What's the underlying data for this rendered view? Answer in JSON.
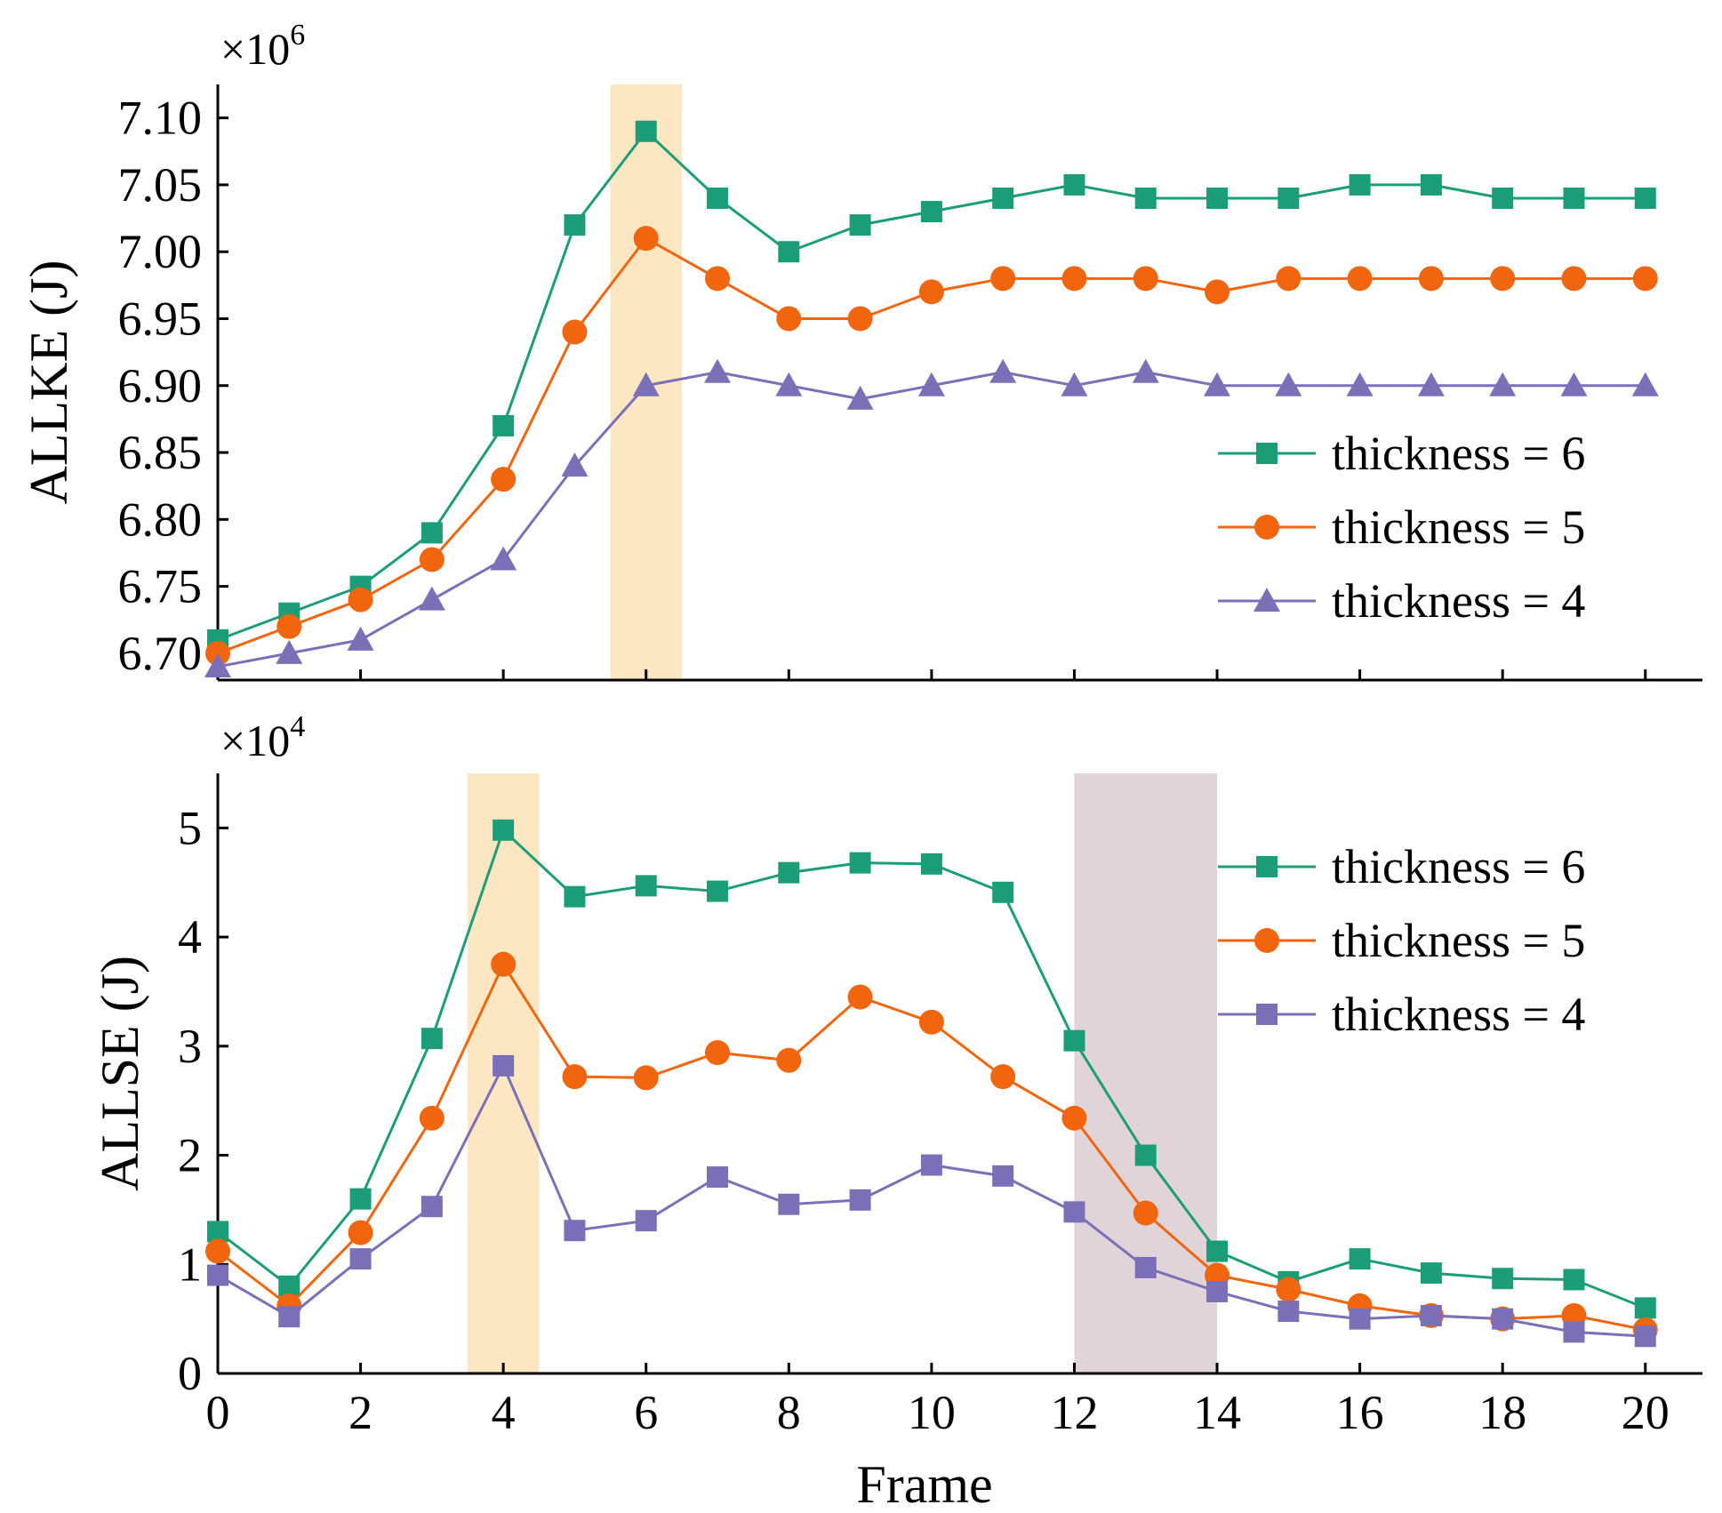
{
  "chart_data": [
    {
      "type": "line",
      "id": "top",
      "title": "",
      "xlabel": "",
      "ylabel": "ALLKE (J)",
      "multiplier": {
        "base": "×10",
        "exp": "6"
      },
      "x": [
        0,
        1,
        2,
        3,
        4,
        5,
        6,
        7,
        8,
        9,
        10,
        11,
        12,
        13,
        14,
        15,
        16,
        17,
        18,
        19,
        20
      ],
      "xlim": [
        0,
        20.8
      ],
      "ylim": [
        6.68,
        7.125
      ],
      "yticks": [
        6.7,
        6.75,
        6.8,
        6.85,
        6.9,
        6.95,
        7.0,
        7.05,
        7.1
      ],
      "ytick_labels": [
        "6.70",
        "6.75",
        "6.80",
        "6.85",
        "6.90",
        "6.95",
        "7.00",
        "7.05",
        "7.10"
      ],
      "xticks": [
        0,
        2,
        4,
        6,
        8,
        10,
        12,
        14,
        16,
        18,
        20
      ],
      "show_xtick_labels": false,
      "highlight_bands": [
        {
          "from": 5.5,
          "to": 6.5,
          "color": "#fde7c2"
        }
      ],
      "series": [
        {
          "name": "thickness = 6",
          "color": "#1b9e77",
          "marker": "square",
          "values": [
            6.71,
            6.73,
            6.75,
            6.79,
            6.87,
            7.02,
            7.09,
            7.04,
            7.0,
            7.02,
            7.03,
            7.04,
            7.05,
            7.04,
            7.04,
            7.04,
            7.05,
            7.05,
            7.04,
            7.04,
            7.04
          ]
        },
        {
          "name": "thickness = 5",
          "color": "#f0650e",
          "marker": "circle",
          "values": [
            6.7,
            6.72,
            6.74,
            6.77,
            6.83,
            6.94,
            7.01,
            6.98,
            6.95,
            6.95,
            6.97,
            6.98,
            6.98,
            6.98,
            6.97,
            6.98,
            6.98,
            6.98,
            6.98,
            6.98,
            6.98
          ]
        },
        {
          "name": "thickness = 4",
          "color": "#7b70b8",
          "marker": "triangle",
          "values": [
            6.69,
            6.7,
            6.71,
            6.74,
            6.77,
            6.84,
            6.9,
            6.91,
            6.9,
            6.89,
            6.9,
            6.91,
            6.9,
            6.91,
            6.9,
            6.9,
            6.9,
            6.9,
            6.9,
            6.9,
            6.9
          ]
        }
      ],
      "legend_position": "center-right"
    },
    {
      "type": "line",
      "id": "bottom",
      "title": "",
      "xlabel": "Frame",
      "ylabel": "ALLSE (J)",
      "multiplier": {
        "base": "×10",
        "exp": "4"
      },
      "x": [
        0,
        1,
        2,
        3,
        4,
        5,
        6,
        7,
        8,
        9,
        10,
        11,
        12,
        13,
        14,
        15,
        16,
        17,
        18,
        19,
        20
      ],
      "xlim": [
        0,
        20.8
      ],
      "ylim": [
        0,
        5.5
      ],
      "yticks": [
        0,
        1,
        2,
        3,
        4,
        5
      ],
      "ytick_labels": [
        "0",
        "1",
        "2",
        "3",
        "4",
        "5"
      ],
      "xticks": [
        0,
        2,
        4,
        6,
        8,
        10,
        12,
        14,
        16,
        18,
        20
      ],
      "xtick_labels": [
        "0",
        "2",
        "4",
        "6",
        "8",
        "10",
        "12",
        "14",
        "16",
        "18",
        "20"
      ],
      "show_xtick_labels": true,
      "highlight_bands": [
        {
          "from": 3.5,
          "to": 4.5,
          "color": "#fde7c2"
        },
        {
          "from": 12,
          "to": 14,
          "color": "#e0d4d9"
        }
      ],
      "series": [
        {
          "name": "thickness = 6",
          "color": "#1b9e77",
          "marker": "square",
          "values": [
            1.3,
            0.8,
            1.6,
            3.07,
            4.98,
            4.37,
            4.47,
            4.42,
            4.59,
            4.68,
            4.67,
            4.41,
            3.05,
            2.0,
            1.12,
            0.84,
            1.05,
            0.92,
            0.87,
            0.86,
            0.6
          ]
        },
        {
          "name": "thickness = 5",
          "color": "#f0650e",
          "marker": "circle",
          "values": [
            1.12,
            0.62,
            1.29,
            2.34,
            3.75,
            2.72,
            2.71,
            2.94,
            2.87,
            3.45,
            3.22,
            2.72,
            2.34,
            1.47,
            0.9,
            0.77,
            0.62,
            0.53,
            0.5,
            0.53,
            0.4
          ]
        },
        {
          "name": "thickness = 4",
          "color": "#7b70b8",
          "marker": "square",
          "values": [
            0.9,
            0.52,
            1.05,
            1.53,
            2.82,
            1.31,
            1.4,
            1.8,
            1.55,
            1.59,
            1.91,
            1.81,
            1.48,
            0.97,
            0.75,
            0.57,
            0.5,
            0.53,
            0.5,
            0.38,
            0.34
          ]
        }
      ],
      "legend_position": "top-right"
    }
  ]
}
